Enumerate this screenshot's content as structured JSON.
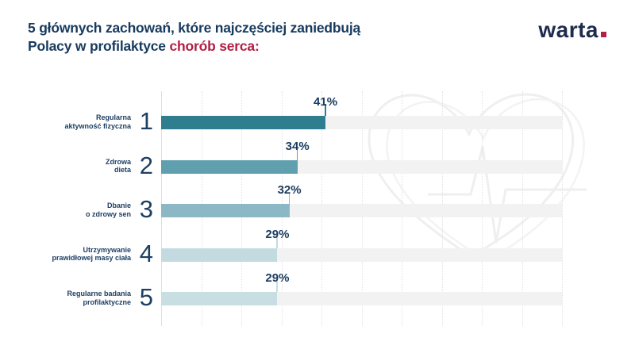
{
  "header": {
    "title_line1": "5 głównych zachowań, które najczęściej zaniedbują",
    "title_line2_prefix": "Polacy w profilaktyce ",
    "title_line2_highlight": "chorób serca:",
    "logo_text": "warta"
  },
  "colors": {
    "navy": "#173a5e",
    "highlight_red": "#b01e45",
    "logo_navy": "#1e2b4d",
    "logo_dot_red": "#b22045",
    "track": "#f2f2f2",
    "gridline": "#e2e2e2",
    "axis": "#d5e2e6",
    "watermark": "#efefef"
  },
  "chart_data": {
    "type": "bar",
    "orientation": "horizontal",
    "title": "5 głównych zachowań, które najczęściej zaniedbują Polacy w profilaktyce chorób serca:",
    "unit": "%",
    "xlim": [
      0,
      100
    ],
    "grid_step_percent": 10,
    "grid": true,
    "legend_position": "none",
    "categories": [
      "Regularna aktywność fizyczna",
      "Zdrowa dieta",
      "Dbanie o zdrowy sen",
      "Utrzymywanie prawidłowej masy ciała",
      "Regularne badania profilaktyczne"
    ],
    "values": [
      41,
      34,
      32,
      29,
      29
    ],
    "rows": [
      {
        "rank": "1",
        "label_lines": [
          "Regularna",
          "aktywność fizyczna"
        ],
        "value": 41,
        "value_label": "41%",
        "bar_color": "#2f7e8f"
      },
      {
        "rank": "2",
        "label_lines": [
          "Zdrowa",
          "dieta"
        ],
        "value": 34,
        "value_label": "34%",
        "bar_color": "#5f9fae"
      },
      {
        "rank": "3",
        "label_lines": [
          "Dbanie",
          "o zdrowy sen"
        ],
        "value": 32,
        "value_label": "32%",
        "bar_color": "#8cb8c6"
      },
      {
        "rank": "4",
        "label_lines": [
          "Utrzymywanie",
          "prawidłowej masy ciała"
        ],
        "value": 29,
        "value_label": "29%",
        "bar_color": "#c3dbe0"
      },
      {
        "rank": "5",
        "label_lines": [
          "Regularne badania",
          "profilaktyczne"
        ],
        "value": 29,
        "value_label": "29%",
        "bar_color": "#c7dee2"
      }
    ]
  }
}
